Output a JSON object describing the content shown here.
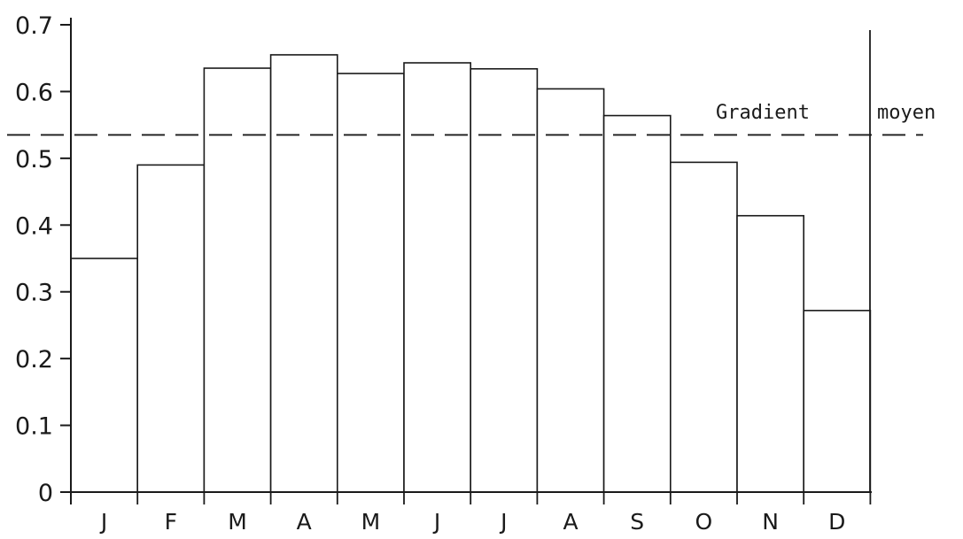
{
  "chart_data": {
    "type": "bar",
    "title": "",
    "xlabel": "",
    "ylabel": "",
    "categories": [
      "J",
      "F",
      "M",
      "A",
      "M",
      "J",
      "J",
      "A",
      "S",
      "O",
      "N",
      "D"
    ],
    "values": [
      0.35,
      0.49,
      0.635,
      0.655,
      0.627,
      0.643,
      0.634,
      0.604,
      0.564,
      0.494,
      0.414,
      0.272
    ],
    "ylim": [
      0,
      0.7
    ],
    "yticks": [
      "0",
      "0.1",
      "0.2",
      "0.3",
      "0.4",
      "0.5",
      "0.6",
      "0.7"
    ],
    "grid": false,
    "reference_line": {
      "value": 0.535,
      "style": "dashed",
      "label_part1": "Gradient",
      "label_part2": "moyen"
    },
    "colors": {
      "ink": "#1a1a1a",
      "bar_fill": "#ffffff",
      "background": "#ffffff"
    }
  }
}
